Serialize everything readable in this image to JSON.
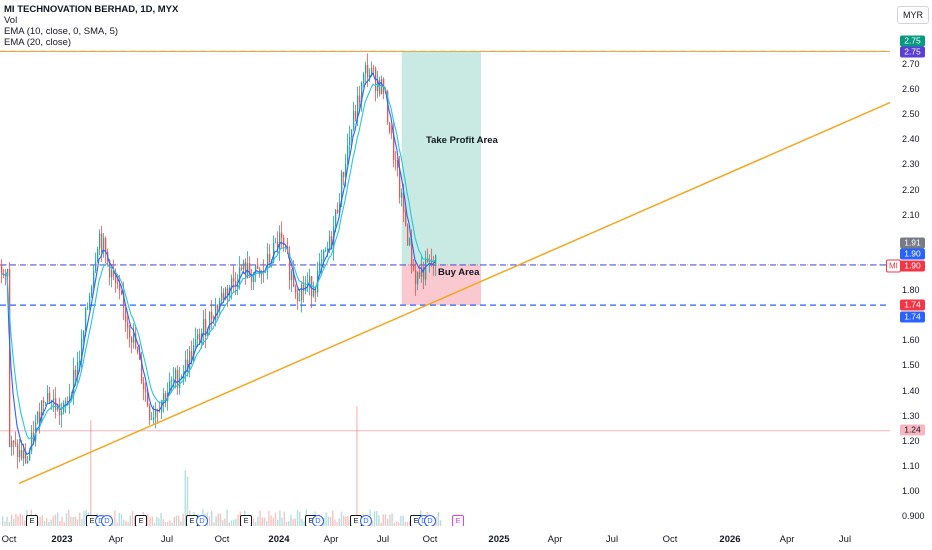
{
  "legend": {
    "title": "MI TECHNOVATION BERHAD, 1D, MYX",
    "vol": "Vol",
    "ema1": "EMA (10, close, 0, SMA, 5)",
    "ema2": "EMA (20, close)"
  },
  "currency": "MYR",
  "price_ticks": [
    "2.70",
    "2.60",
    "2.50",
    "2.40",
    "2.30",
    "2.20",
    "2.10",
    "1.80",
    "1.70",
    "1.60",
    "1.50",
    "1.40",
    "1.30",
    "1.20",
    "1.10",
    "1.00",
    "0.900"
  ],
  "time_labels": [
    {
      "text": "Oct",
      "bold": false
    },
    {
      "text": "2023",
      "bold": true
    },
    {
      "text": "Apr",
      "bold": false
    },
    {
      "text": "Jul",
      "bold": false
    },
    {
      "text": "Oct",
      "bold": false
    },
    {
      "text": "2024",
      "bold": true
    },
    {
      "text": "Apr",
      "bold": false
    },
    {
      "text": "Jul",
      "bold": false
    },
    {
      "text": "Oct",
      "bold": false
    },
    {
      "text": "2025",
      "bold": true
    },
    {
      "text": "Apr",
      "bold": false
    },
    {
      "text": "Jul",
      "bold": false
    },
    {
      "text": "Oct",
      "bold": false
    },
    {
      "text": "2026",
      "bold": true
    },
    {
      "text": "Apr",
      "bold": false
    },
    {
      "text": "Jul",
      "bold": false
    }
  ],
  "badges": {
    "top1": {
      "text": "2.75",
      "color": "#089981"
    },
    "top2": {
      "text": "2.75",
      "color": "#5b3ed6"
    },
    "gray": {
      "text": "1.91",
      "color": "#787b86"
    },
    "blue1": {
      "text": "1.90",
      "color": "#2962ff"
    },
    "red": {
      "text": "1.90",
      "color": "#f23645"
    },
    "mi": "MI",
    "red2": {
      "text": "1.74",
      "color": "#f23645"
    },
    "blue2": {
      "text": "1.74",
      "color": "#2962ff"
    },
    "pink": {
      "text": "1.24",
      "color": "#f7b6c0"
    }
  },
  "zones": {
    "take_profit": "Take Profit Area",
    "buy": "Buy Area"
  },
  "events": {
    "earnings": "E",
    "dividend": "D"
  },
  "colors": {
    "up": "#26a69a",
    "down": "#ef5350",
    "ema_fast": "#2962ff",
    "ema_slow": "#26c6da",
    "trendline": "#f5a623",
    "take_profit_fill": "#c8eae2",
    "buy_fill": "#f9c9cf",
    "level_line": "#2962ff"
  },
  "chart_data": {
    "type": "candlestick",
    "symbol": "MI TECHNOVATION BERHAD",
    "interval": "1D",
    "exchange": "MYX",
    "ylim": [
      0.88,
      2.8
    ],
    "last_price": 1.9,
    "levels": [
      2.75,
      1.9,
      1.74,
      1.24
    ],
    "take_profit_zone": [
      1.9,
      2.75
    ],
    "buy_zone": [
      1.74,
      1.9
    ],
    "trendline": {
      "from": {
        "date": "2022-10",
        "price": 1.03
      },
      "to": {
        "date": "2026-08",
        "price": 2.58
      }
    },
    "approx_closes": [
      {
        "date": "2022-10",
        "close": 1.18
      },
      {
        "date": "2022-11",
        "close": 1.12
      },
      {
        "date": "2022-12",
        "close": 1.4
      },
      {
        "date": "2023-01",
        "close": 1.3
      },
      {
        "date": "2023-02",
        "close": 1.55
      },
      {
        "date": "2023-03",
        "close": 2.03
      },
      {
        "date": "2023-04",
        "close": 1.8
      },
      {
        "date": "2023-05",
        "close": 1.6
      },
      {
        "date": "2023-06",
        "close": 1.3
      },
      {
        "date": "2023-07",
        "close": 1.4
      },
      {
        "date": "2023-08",
        "close": 1.5
      },
      {
        "date": "2023-09",
        "close": 1.65
      },
      {
        "date": "2023-10",
        "close": 1.78
      },
      {
        "date": "2023-11",
        "close": 1.88
      },
      {
        "date": "2023-12",
        "close": 1.85
      },
      {
        "date": "2024-01",
        "close": 2.0
      },
      {
        "date": "2024-02",
        "close": 1.8
      },
      {
        "date": "2024-03",
        "close": 1.82
      },
      {
        "date": "2024-04",
        "close": 2.0
      },
      {
        "date": "2024-05",
        "close": 2.4
      },
      {
        "date": "2024-06",
        "close": 2.68
      },
      {
        "date": "2024-07",
        "close": 2.6
      },
      {
        "date": "2024-08",
        "close": 2.2
      },
      {
        "date": "2024-09",
        "close": 1.85
      },
      {
        "date": "2024-10",
        "close": 1.9
      }
    ]
  }
}
